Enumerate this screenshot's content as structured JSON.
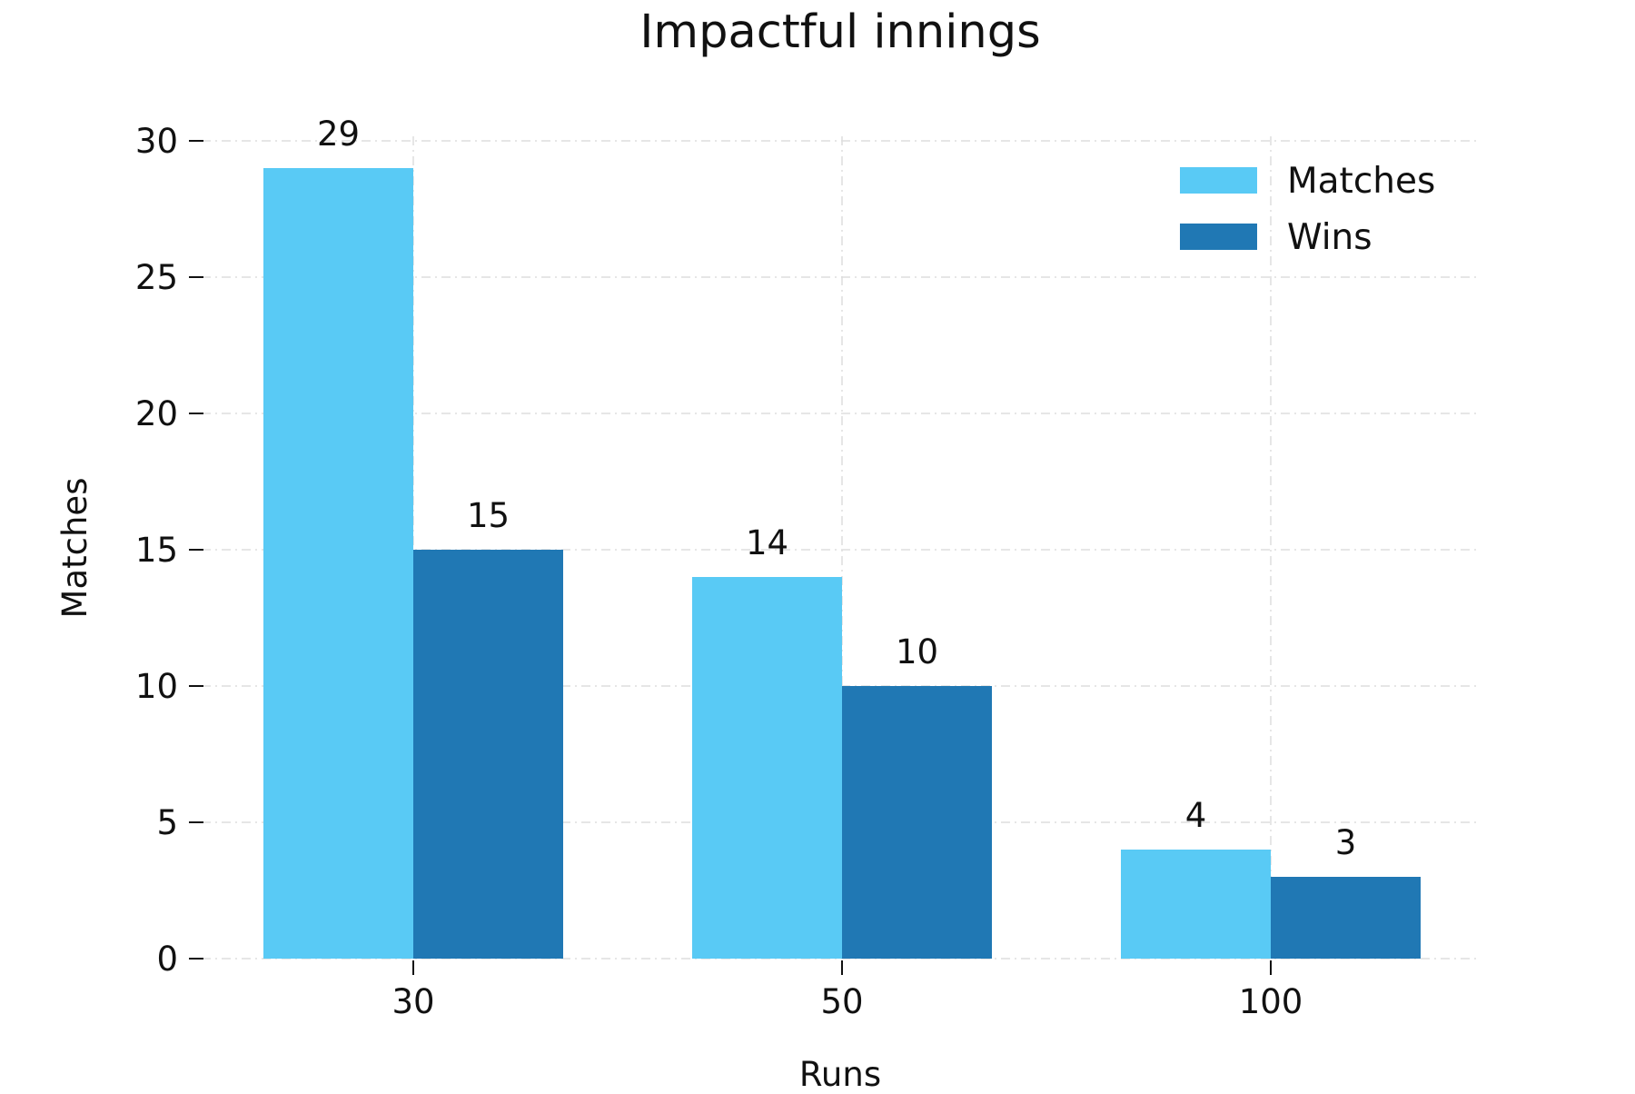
{
  "chart_data": {
    "type": "bar",
    "title": "Impactful innings",
    "xlabel": "Runs",
    "ylabel": "Matches",
    "categories": [
      "30",
      "50",
      "100"
    ],
    "series": [
      {
        "name": "Matches",
        "values": [
          29,
          14,
          4
        ],
        "color": "#59CAF5"
      },
      {
        "name": "Wins",
        "values": [
          15,
          10,
          3
        ],
        "color": "#2078B4"
      }
    ],
    "ylim": [
      0,
      30
    ],
    "yticks": [
      "0",
      "5",
      "10",
      "15",
      "20",
      "25",
      "30"
    ],
    "grid": true,
    "legend_position": "top-right"
  }
}
